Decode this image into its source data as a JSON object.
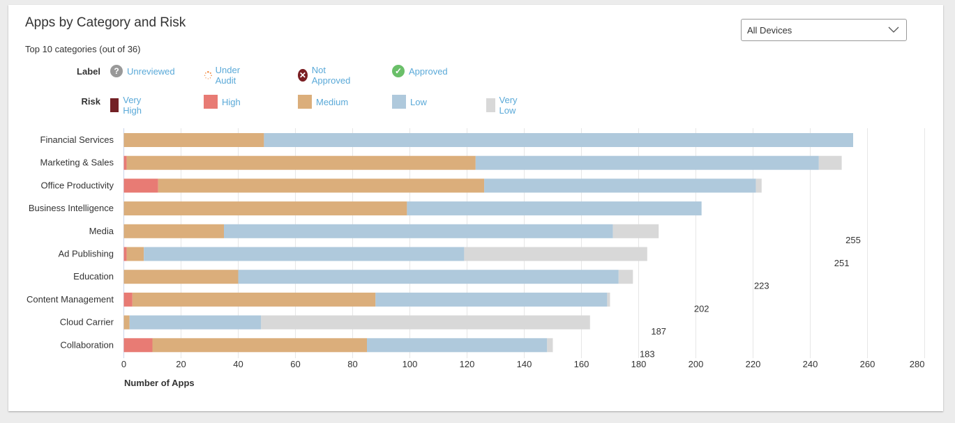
{
  "title": "Apps by Category and Risk",
  "subtitle": "Top 10 categories (out of 36)",
  "device_select": {
    "value": "All Devices"
  },
  "legend": {
    "label_key": "Label",
    "labels": [
      {
        "name": "Unreviewed",
        "icon": "question-circle-icon",
        "color": "#999999"
      },
      {
        "name": "Under Audit",
        "icon": "dotted-circle-icon",
        "color": "#f0883e"
      },
      {
        "name": "Not Approved",
        "icon": "x-circle-icon",
        "color": "#7a1e22"
      },
      {
        "name": "Approved",
        "icon": "check-circle-icon",
        "color": "#6abf69"
      }
    ],
    "risk_key": "Risk",
    "risks": [
      {
        "name": "Very High",
        "color": "#732126"
      },
      {
        "name": "High",
        "color": "#e87b74"
      },
      {
        "name": "Medium",
        "color": "#dbae7b"
      },
      {
        "name": "Low",
        "color": "#afc9dc"
      },
      {
        "name": "Very Low",
        "color": "#d8d8d8"
      }
    ]
  },
  "chart_data": {
    "type": "bar",
    "orientation": "horizontal",
    "stacked": true,
    "title": "Apps by Category and Risk",
    "xlabel": "Number of Apps",
    "ylabel": "",
    "xlim": [
      0,
      280
    ],
    "xticks": [
      0,
      20,
      40,
      60,
      80,
      100,
      120,
      140,
      160,
      180,
      200,
      220,
      240,
      260,
      280
    ],
    "grid": true,
    "categories": [
      "Financial Services",
      "Marketing & Sales",
      "Office Productivity",
      "Business Intelligence",
      "Media",
      "Ad Publishing",
      "Education",
      "Content Management",
      "Cloud Carrier",
      "Collaboration"
    ],
    "series": [
      {
        "name": "Very High",
        "values": [
          0,
          0,
          0,
          0,
          0,
          0,
          0,
          0,
          0,
          0
        ]
      },
      {
        "name": "High",
        "values": [
          0,
          1,
          12,
          0,
          0,
          1,
          0,
          3,
          0,
          10
        ]
      },
      {
        "name": "Medium",
        "values": [
          49,
          122,
          114,
          99,
          35,
          6,
          40,
          85,
          2,
          75
        ]
      },
      {
        "name": "Low",
        "values": [
          206,
          120,
          95,
          103,
          136,
          112,
          133,
          81,
          46,
          63
        ]
      },
      {
        "name": "Very Low",
        "values": [
          0,
          8,
          2,
          0,
          16,
          64,
          5,
          1,
          115,
          2
        ]
      }
    ],
    "data_labels": [
      "255",
      "251",
      "223",
      "202",
      "187",
      "183"
    ],
    "data_label_values": [
      255,
      251,
      223,
      202,
      187,
      183
    ]
  }
}
